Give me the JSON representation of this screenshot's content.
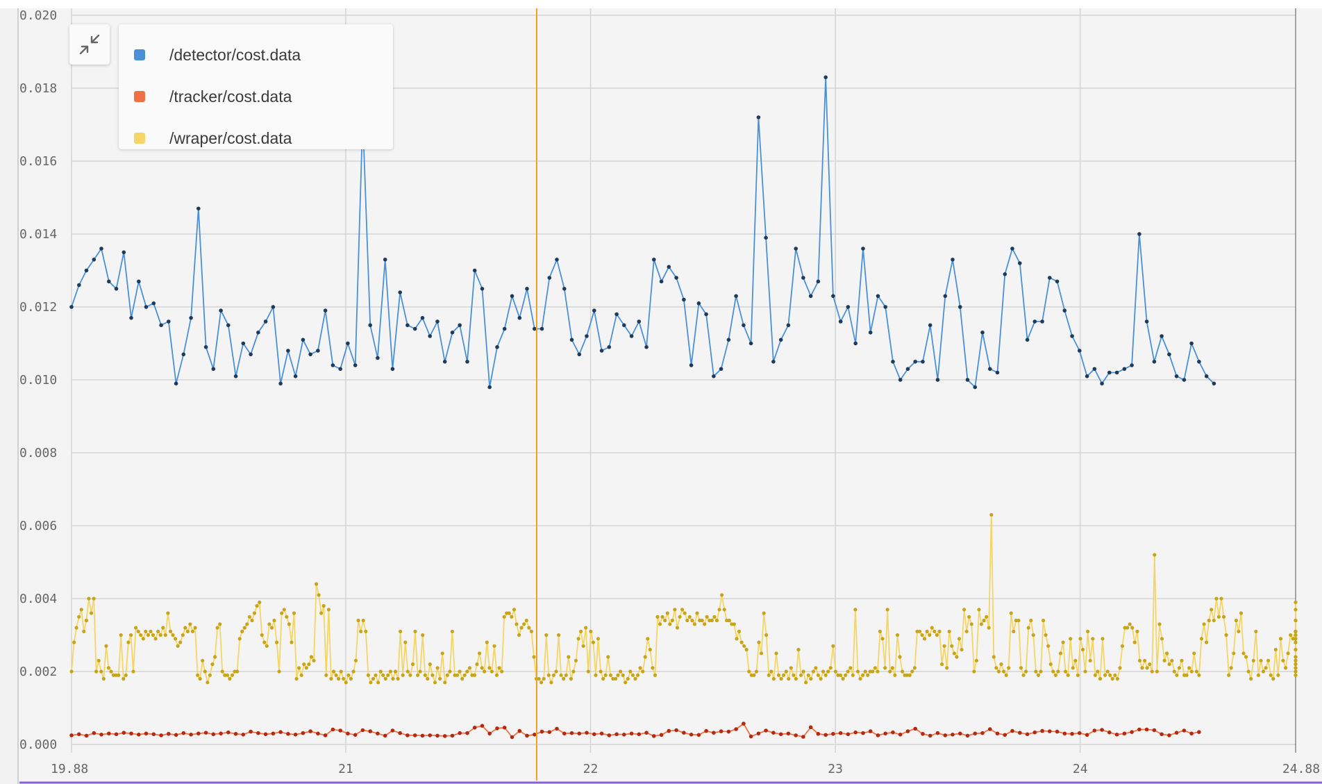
{
  "chart_data": {
    "type": "line",
    "xlim": [
      19.88,
      24.88
    ],
    "ylim": [
      0.0,
      0.02
    ],
    "x_ticks": [
      "19.88",
      "21",
      "22",
      "23",
      "24",
      "24.88"
    ],
    "x_tick_values": [
      19.88,
      21,
      22,
      23,
      24,
      24.88
    ],
    "y_ticks": [
      "0.000",
      "0.002",
      "0.004",
      "0.006",
      "0.008",
      "0.010",
      "0.012",
      "0.014",
      "0.016",
      "0.018",
      "0.020"
    ],
    "y_tick_values": [
      0,
      0.002,
      0.004,
      0.006,
      0.008,
      0.01,
      0.012,
      0.014,
      0.016,
      0.018,
      0.02
    ],
    "cursor_x": 21.78,
    "grid": true,
    "legend_position": "top-left",
    "series": [
      {
        "name": "/detector/cost.data",
        "color": "#4a90d9",
        "marker_color": "#1f3b5a",
        "x_start": 19.88,
        "x_step": 0.0305,
        "values": [
          0.012,
          0.0126,
          0.013,
          0.0133,
          0.0136,
          0.0127,
          0.0125,
          0.0135,
          0.0117,
          0.0127,
          0.012,
          0.0121,
          0.0115,
          0.0116,
          0.0099,
          0.0107,
          0.0117,
          0.0147,
          0.0109,
          0.0103,
          0.0119,
          0.0115,
          0.0101,
          0.011,
          0.0107,
          0.0113,
          0.0116,
          0.012,
          0.0099,
          0.0108,
          0.0101,
          0.0111,
          0.0107,
          0.0108,
          0.0119,
          0.0104,
          0.0103,
          0.011,
          0.0104,
          0.0172,
          0.0115,
          0.0106,
          0.0133,
          0.0103,
          0.0124,
          0.0115,
          0.0114,
          0.0117,
          0.0112,
          0.0116,
          0.0105,
          0.0113,
          0.0115,
          0.0105,
          0.013,
          0.0125,
          0.0098,
          0.0109,
          0.0114,
          0.0123,
          0.0117,
          0.0125,
          0.0114,
          0.0114,
          0.0128,
          0.0133,
          0.0125,
          0.0111,
          0.0107,
          0.0112,
          0.0119,
          0.0108,
          0.0109,
          0.0118,
          0.0115,
          0.0112,
          0.0116,
          0.0109,
          0.0133,
          0.0127,
          0.0131,
          0.0128,
          0.0122,
          0.0104,
          0.0121,
          0.0118,
          0.0101,
          0.0103,
          0.0111,
          0.0123,
          0.0115,
          0.011,
          0.0172,
          0.0139,
          0.0105,
          0.0111,
          0.0115,
          0.0136,
          0.0128,
          0.0123,
          0.0127,
          0.0183,
          0.0123,
          0.0116,
          0.012,
          0.011,
          0.0136,
          0.0113,
          0.0123,
          0.012,
          0.0105,
          0.01,
          0.0103,
          0.0105,
          0.0105,
          0.0115,
          0.01,
          0.0123,
          0.0133,
          0.012,
          0.01,
          0.0098,
          0.0113,
          0.0103,
          0.0102,
          0.0129,
          0.0136,
          0.0132,
          0.0111,
          0.0116,
          0.0116,
          0.0128,
          0.0127,
          0.0119,
          0.0112,
          0.0108,
          0.0101,
          0.0103,
          0.0099,
          0.0102,
          0.0102,
          0.0103,
          0.0104,
          0.014,
          0.0116,
          0.0105,
          0.0112,
          0.0107,
          0.0101,
          0.01,
          0.011,
          0.0105,
          0.0101,
          0.0099
        ]
      },
      {
        "name": "/tracker/cost.data",
        "color": "#ef7146",
        "marker_color": "#b42a10",
        "x_start": 19.88,
        "x_step": 0.0305,
        "values": [
          0.00025,
          0.00028,
          0.00024,
          0.00031,
          0.00027,
          0.0003,
          0.00028,
          0.00032,
          0.0003,
          0.00027,
          0.0003,
          0.00028,
          0.00025,
          0.00029,
          0.00026,
          0.00031,
          0.00027,
          0.0003,
          0.00032,
          0.00028,
          0.0003,
          0.00033,
          0.00029,
          0.00027,
          0.00035,
          0.00031,
          0.00028,
          0.0003,
          0.00034,
          0.00029,
          0.00027,
          0.00031,
          0.00036,
          0.0003,
          0.00025,
          0.00041,
          0.00038,
          0.0003,
          0.00026,
          0.00039,
          0.00036,
          0.0003,
          0.00024,
          0.00038,
          0.00031,
          0.00025,
          0.00025,
          0.00024,
          0.00025,
          0.00024,
          0.00023,
          0.00024,
          0.00031,
          0.00031,
          0.00046,
          0.00051,
          0.0003,
          0.00044,
          0.00046,
          0.0002,
          0.00037,
          0.00024,
          0.00027,
          0.00035,
          0.00034,
          0.00043,
          0.0003,
          0.00031,
          0.0003,
          0.00032,
          0.00028,
          0.0003,
          0.00025,
          0.00028,
          0.00027,
          0.0003,
          0.00028,
          0.00032,
          0.00023,
          0.00026,
          0.00037,
          0.00039,
          0.00032,
          0.00027,
          0.00026,
          0.00037,
          0.00032,
          0.00036,
          0.00035,
          0.00042,
          0.00057,
          0.00022,
          0.0003,
          0.00038,
          0.00032,
          0.00028,
          0.0003,
          0.00025,
          0.00021,
          0.00047,
          0.00029,
          0.00026,
          0.00029,
          0.00031,
          0.00028,
          0.00033,
          0.00031,
          0.00036,
          0.00025,
          0.0003,
          0.00033,
          0.00027,
          0.00036,
          0.00043,
          0.00029,
          0.00024,
          0.00031,
          0.00025,
          0.00027,
          0.0003,
          0.00024,
          0.0003,
          0.00031,
          0.00042,
          0.0003,
          0.00026,
          0.00037,
          0.00032,
          0.00028,
          0.00033,
          0.00037,
          0.00036,
          0.00035,
          0.0003,
          0.00029,
          0.00031,
          0.00026,
          0.00038,
          0.0004,
          0.00033,
          0.00027,
          0.0003,
          0.00034,
          0.00041,
          0.00041,
          0.00039,
          0.00028,
          0.00025,
          0.00032,
          0.00038,
          0.0003,
          0.00034
        ]
      },
      {
        "name": "/wraper/cost.data",
        "color": "#f5d565",
        "marker_color": "#c8a418",
        "x_start": 19.88,
        "x_step": 0.0101,
        "values": [
          0.002,
          0.0028,
          0.0032,
          0.0035,
          0.0037,
          0.0031,
          0.0034,
          0.004,
          0.0036,
          0.004,
          0.002,
          0.0023,
          0.002,
          0.0018,
          0.0027,
          0.0021,
          0.002,
          0.0019,
          0.0019,
          0.0019,
          0.003,
          0.0018,
          0.0019,
          0.0028,
          0.003,
          0.002,
          0.0032,
          0.0031,
          0.003,
          0.0029,
          0.0031,
          0.003,
          0.0031,
          0.003,
          0.0029,
          0.0031,
          0.003,
          0.0032,
          0.003,
          0.0036,
          0.0031,
          0.003,
          0.0029,
          0.0027,
          0.0028,
          0.003,
          0.0032,
          0.0031,
          0.0033,
          0.0031,
          0.0032,
          0.0019,
          0.0018,
          0.0023,
          0.002,
          0.0017,
          0.0019,
          0.0022,
          0.0024,
          0.0032,
          0.0033,
          0.002,
          0.0019,
          0.0019,
          0.0018,
          0.0019,
          0.002,
          0.002,
          0.0029,
          0.0031,
          0.0032,
          0.0033,
          0.0035,
          0.0034,
          0.0036,
          0.0038,
          0.0039,
          0.003,
          0.0028,
          0.0027,
          0.0033,
          0.0032,
          0.0034,
          0.0028,
          0.002,
          0.0036,
          0.0037,
          0.0035,
          0.0033,
          0.0028,
          0.0036,
          0.0018,
          0.0021,
          0.0019,
          0.0022,
          0.0021,
          0.0022,
          0.0024,
          0.0023,
          0.0044,
          0.0041,
          0.0036,
          0.0038,
          0.0019,
          0.0037,
          0.0018,
          0.002,
          0.0019,
          0.0018,
          0.002,
          0.0018,
          0.0017,
          0.0019,
          0.0018,
          0.002,
          0.0023,
          0.0034,
          0.0031,
          0.0034,
          0.0031,
          0.0019,
          0.0017,
          0.0018,
          0.0019,
          0.0017,
          0.002,
          0.0019,
          0.0018,
          0.0019,
          0.002,
          0.0018,
          0.002,
          0.0018,
          0.0031,
          0.0019,
          0.0028,
          0.002,
          0.0019,
          0.0022,
          0.0031,
          0.0019,
          0.002,
          0.003,
          0.0019,
          0.0018,
          0.0022,
          0.0019,
          0.0017,
          0.0021,
          0.0018,
          0.0025,
          0.0017,
          0.0019,
          0.002,
          0.0031,
          0.0019,
          0.0019,
          0.002,
          0.0018,
          0.0019,
          0.002,
          0.0021,
          0.0019,
          0.0019,
          0.0022,
          0.0025,
          0.0021,
          0.002,
          0.0028,
          0.0021,
          0.002,
          0.0027,
          0.0019,
          0.0021,
          0.002,
          0.0035,
          0.0036,
          0.0036,
          0.0035,
          0.0037,
          0.0033,
          0.003,
          0.0032,
          0.0033,
          0.0034,
          0.0032,
          0.0031,
          0.0024,
          0.0018,
          0.0018,
          0.0017,
          0.0018,
          0.003,
          0.0019,
          0.0017,
          0.0019,
          0.002,
          0.003,
          0.0019,
          0.0018,
          0.0019,
          0.0024,
          0.0018,
          0.002,
          0.0023,
          0.0029,
          0.0031,
          0.0027,
          0.0032,
          0.002,
          0.0031,
          0.0028,
          0.0019,
          0.0029,
          0.002,
          0.0018,
          0.0019,
          0.0024,
          0.0019,
          0.0018,
          0.0018,
          0.0019,
          0.002,
          0.0019,
          0.0017,
          0.0018,
          0.002,
          0.0019,
          0.0018,
          0.0019,
          0.0021,
          0.002,
          0.0024,
          0.0029,
          0.0026,
          0.0021,
          0.0019,
          0.0035,
          0.0033,
          0.0035,
          0.0034,
          0.0036,
          0.0033,
          0.0034,
          0.0037,
          0.0032,
          0.0035,
          0.0037,
          0.0036,
          0.0034,
          0.0035,
          0.0034,
          0.0033,
          0.0036,
          0.0034,
          0.0034,
          0.0033,
          0.0035,
          0.0034,
          0.0034,
          0.0035,
          0.0034,
          0.0037,
          0.0041,
          0.0037,
          0.0034,
          0.0034,
          0.0033,
          0.0033,
          0.0029,
          0.0031,
          0.0028,
          0.0027,
          0.0026,
          0.002,
          0.0019,
          0.0019,
          0.002,
          0.0028,
          0.0025,
          0.0036,
          0.003,
          0.0019,
          0.002,
          0.0018,
          0.0025,
          0.0019,
          0.0018,
          0.0019,
          0.002,
          0.0018,
          0.0021,
          0.0019,
          0.0018,
          0.0026,
          0.0019,
          0.002,
          0.0017,
          0.0019,
          0.0018,
          0.002,
          0.0021,
          0.0019,
          0.0018,
          0.002,
          0.0019,
          0.002,
          0.0021,
          0.0027,
          0.002,
          0.0019,
          0.0019,
          0.0018,
          0.0019,
          0.002,
          0.0021,
          0.0019,
          0.0037,
          0.002,
          0.0018,
          0.0019,
          0.002,
          0.0019,
          0.002,
          0.002,
          0.0021,
          0.002,
          0.0031,
          0.0029,
          0.0021,
          0.0037,
          0.002,
          0.0021,
          0.0019,
          0.003,
          0.0024,
          0.002,
          0.0019,
          0.0019,
          0.0019,
          0.002,
          0.0021,
          0.0031,
          0.0031,
          0.003,
          0.0029,
          0.0031,
          0.003,
          0.0032,
          0.0031,
          0.003,
          0.0031,
          0.0022,
          0.0027,
          0.0021,
          0.0031,
          0.0027,
          0.0025,
          0.0024,
          0.0029,
          0.0026,
          0.0037,
          0.0031,
          0.0035,
          0.0033,
          0.002,
          0.0023,
          0.0037,
          0.0033,
          0.0034,
          0.0035,
          0.0032,
          0.0063,
          0.0024,
          0.0021,
          0.002,
          0.0022,
          0.002,
          0.0019,
          0.0021,
          0.0036,
          0.0031,
          0.0034,
          0.0034,
          0.0021,
          0.0019,
          0.002,
          0.0032,
          0.0034,
          0.003,
          0.002,
          0.0019,
          0.002,
          0.0034,
          0.003,
          0.0027,
          0.0022,
          0.002,
          0.0019,
          0.002,
          0.0025,
          0.0028,
          0.002,
          0.0019,
          0.0029,
          0.0021,
          0.0023,
          0.0019,
          0.0029,
          0.0026,
          0.002,
          0.0031,
          0.0023,
          0.0029,
          0.0019,
          0.002,
          0.0018,
          0.0029,
          0.0019,
          0.002,
          0.0019,
          0.0018,
          0.0019,
          0.0018,
          0.0021,
          0.0027,
          0.0032,
          0.0032,
          0.0033,
          0.0032,
          0.0028,
          0.0031,
          0.0023,
          0.0021,
          0.0023,
          0.0021,
          0.0022,
          0.002,
          0.0052,
          0.002,
          0.0033,
          0.0029,
          0.0023,
          0.0025,
          0.0022,
          0.0023,
          0.002,
          0.0019,
          0.0021,
          0.0023,
          0.0019,
          0.0019,
          0.0021,
          0.002,
          0.0025,
          0.002,
          0.0019,
          0.0029,
          0.0033,
          0.0028,
          0.0034,
          0.0037,
          0.0034,
          0.004,
          0.0035,
          0.004,
          0.0035,
          0.003,
          0.0019,
          0.0021,
          0.0025,
          0.0034,
          0.0031,
          0.0036,
          0.0025,
          0.0024,
          0.002,
          0.0018,
          0.0023,
          0.0031,
          0.0019,
          0.0023,
          0.002,
          0.0021,
          0.0023,
          0.0019,
          0.0018,
          0.0026,
          0.0019,
          0.0029,
          0.0023,
          0.0021,
          0.0025,
          0.003,
          0.0029,
          0.0031,
          0.003,
          0.0031,
          0.003,
          0.0031,
          0.0029,
          0.0022,
          0.0029,
          0.0024,
          0.0021,
          0.002,
          0.0028,
          0.0023,
          0.0019,
          0.0034,
          0.0023,
          0.002,
          0.0039,
          0.0022,
          0.0021,
          0.0029,
          0.0022,
          0.0026,
          0.003,
          0.0034,
          0.0026,
          0.002,
          0.0019,
          0.0037,
          0.0024
        ]
      }
    ]
  },
  "legend": {
    "items": [
      {
        "label": "/detector/cost.data",
        "color": "#4a90d9"
      },
      {
        "label": "/tracker/cost.data",
        "color": "#ef7146"
      },
      {
        "label": "/wraper/cost.data",
        "color": "#f5d565"
      }
    ]
  },
  "colors": {
    "grid": "#d4d4d4",
    "cursor": "#f0a21b",
    "bottom_accent": "#8c5fd8",
    "axis": "#bdbdbd"
  },
  "icons": {
    "collapse": "collapse-arrows-icon"
  }
}
